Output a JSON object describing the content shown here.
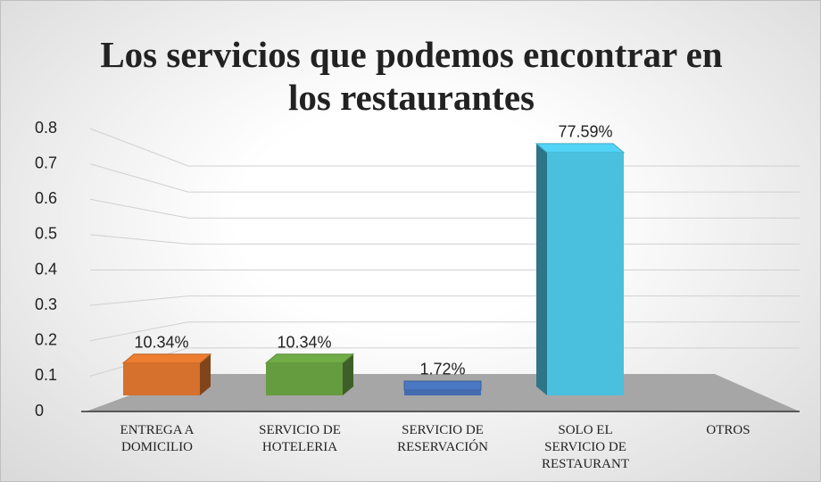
{
  "chart_data": {
    "type": "bar3d",
    "title": "Los servicios que podemos encontrar en los restaurantes",
    "categories": [
      "ENTREGA A DOMICILIO",
      "SERVICIO DE HOTELERIA",
      "SERVICIO DE RESERVACIÓN",
      "SOLO EL SERVICIO DE RESTAURANT",
      "OTROS"
    ],
    "values": [
      0.1034,
      0.1034,
      0.0172,
      0.7759,
      null
    ],
    "value_labels": [
      "10.34%",
      "10.34%",
      "1.72%",
      "77.59%",
      null
    ],
    "colors": [
      "#ed7d31",
      "#70ad47",
      "#4a78c2",
      "#52d4f7",
      null
    ],
    "ylim": [
      0,
      0.8
    ],
    "yticks": [
      0,
      0.1,
      0.2,
      0.3,
      0.4,
      0.5,
      0.6,
      0.7,
      0.8
    ],
    "grid": true
  }
}
